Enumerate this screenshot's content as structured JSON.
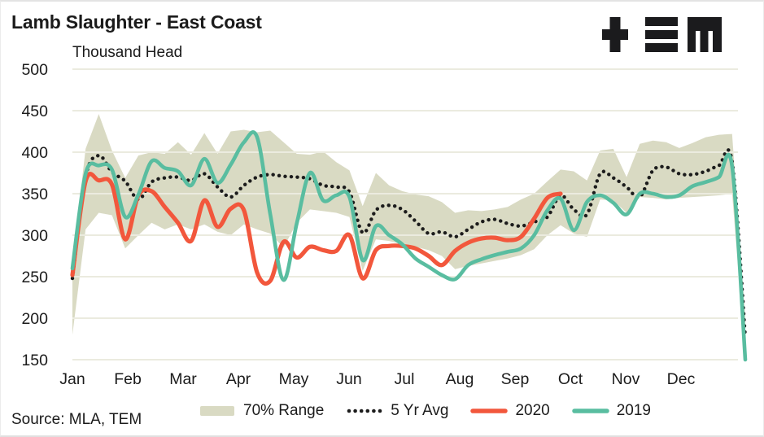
{
  "header": {
    "title": "Lamb Slaughter - East Coast",
    "subtitle": "Thousand Head",
    "logo": "tem-logo"
  },
  "footer": {
    "source": "Source: MLA, TEM"
  },
  "legend": {
    "items": [
      {
        "id": "range-70",
        "type": "band",
        "label": "70% Range",
        "color": "#d9dac3"
      },
      {
        "id": "avg-5yr",
        "type": "dots",
        "label": "5 Yr Avg",
        "color": "#1c1c1c"
      },
      {
        "id": "y2020",
        "type": "line",
        "label": "2020",
        "color": "#f2573c"
      },
      {
        "id": "y2019",
        "type": "line",
        "label": "2019",
        "color": "#59bda0"
      }
    ]
  },
  "chart_data": {
    "type": "line",
    "title": "Lamb Slaughter - East Coast",
    "ylabel": "Thousand Head",
    "x_unit": "weeks",
    "x_ticks": [
      "Jan",
      "Feb",
      "Mar",
      "Apr",
      "May",
      "Jun",
      "Jul",
      "Aug",
      "Sep",
      "Oct",
      "Nov",
      "Dec"
    ],
    "y_ticks": [
      500,
      450,
      400,
      350,
      300,
      250,
      200,
      150
    ],
    "ylim": [
      150,
      500
    ],
    "grid": true,
    "grid_color": "#ebebdf",
    "legend_position": "bottom",
    "series": [
      {
        "name": "70% Range",
        "type": "band",
        "color": "#d9dac3",
        "upper": [
          267,
          404,
          446,
          402,
          369,
          396,
          400,
          398,
          412,
          397,
          423,
          398,
          425,
          427,
          424,
          426,
          412,
          398,
          397,
          401,
          388,
          378,
          335,
          375,
          360,
          353,
          349,
          347,
          340,
          327,
          330,
          329,
          331,
          334,
          343,
          350,
          365,
          379,
          377,
          366,
          402,
          404,
          370,
          410,
          414,
          412,
          405,
          411,
          418,
          421,
          422,
          200
        ],
        "lower": [
          180,
          307,
          327,
          324,
          284,
          300,
          315,
          307,
          313,
          307,
          313,
          304,
          300,
          313,
          307,
          302,
          285,
          315,
          331,
          329,
          327,
          322,
          257,
          295,
          293,
          289,
          286,
          282,
          275,
          259,
          263,
          266,
          269,
          272,
          276,
          283,
          300,
          312,
          302,
          298,
          343,
          342,
          327,
          346,
          345,
          343,
          345,
          346,
          347,
          348,
          350,
          155
        ]
      },
      {
        "name": "5 Yr Avg",
        "type": "dotted",
        "color": "#1c1c1c",
        "values": [
          248,
          370,
          396,
          376,
          365,
          343,
          364,
          369,
          370,
          366,
          374,
          358,
          346,
          360,
          370,
          373,
          371,
          370,
          368,
          360,
          358,
          352,
          303,
          330,
          336,
          331,
          317,
          302,
          304,
          298,
          307,
          316,
          319,
          314,
          311,
          316,
          322,
          348,
          331,
          325,
          374,
          369,
          358,
          346,
          378,
          382,
          374,
          373,
          377,
          384,
          388,
          177
        ]
      },
      {
        "name": "2020",
        "type": "line",
        "color": "#f2573c",
        "values": [
          252,
          365,
          366,
          361,
          295,
          348,
          353,
          334,
          315,
          293,
          342,
          310,
          332,
          330,
          255,
          245,
          292,
          273,
          286,
          282,
          281,
          300,
          248,
          282,
          287,
          287,
          284,
          275,
          264,
          281,
          291,
          296,
          297,
          294,
          298,
          320,
          345,
          350
        ]
      },
      {
        "name": "2019",
        "type": "line",
        "color": "#59bda0",
        "values": [
          260,
          374,
          384,
          379,
          322,
          349,
          389,
          381,
          377,
          360,
          392,
          363,
          385,
          412,
          418,
          325,
          246,
          314,
          375,
          342,
          348,
          346,
          270,
          311,
          300,
          289,
          272,
          262,
          252,
          247,
          264,
          271,
          276,
          280,
          284,
          300,
          330,
          344,
          306,
          340,
          348,
          339,
          325,
          350,
          350,
          346,
          348,
          359,
          364,
          370,
          383,
          150
        ]
      }
    ]
  }
}
